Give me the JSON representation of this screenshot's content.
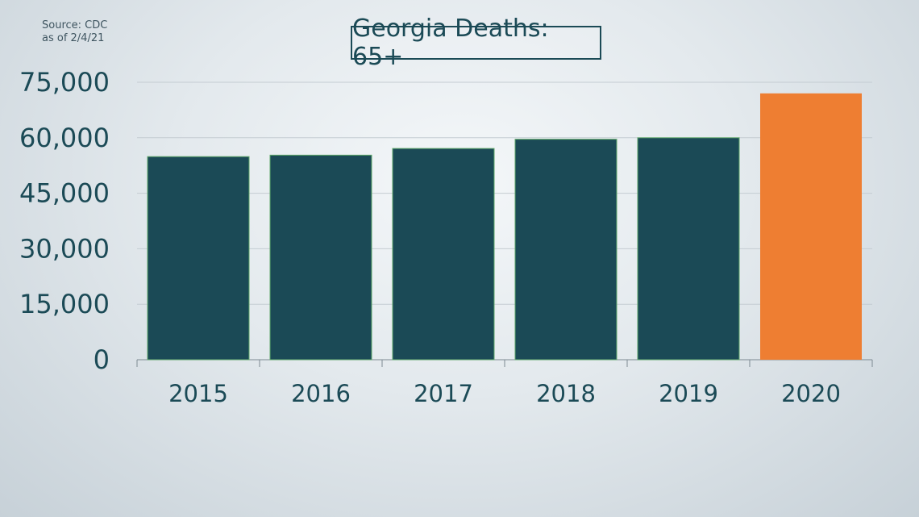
{
  "source": {
    "line1": "Source: CDC",
    "line2": "as of 2/4/21"
  },
  "chart_data": {
    "type": "bar",
    "title": "Georgia Deaths: 65+",
    "xlabel": "",
    "ylabel": "",
    "categories": [
      "2015",
      "2016",
      "2017",
      "2018",
      "2019",
      "2020"
    ],
    "values": [
      54900,
      55300,
      57100,
      59600,
      60000,
      72000
    ],
    "ylim": [
      0,
      75000
    ],
    "yticks": [
      0,
      15000,
      30000,
      45000,
      60000,
      75000
    ],
    "ytick_labels": [
      "0",
      "15,000",
      "30,000",
      "45,000",
      "60,000",
      "75,000"
    ],
    "grid": true,
    "legend": "none",
    "colors": {
      "bar": "#1b4a56",
      "bar_outline": "#5fa86a",
      "highlight": "#ee7e32",
      "highlight_index": 5,
      "text": "#1b4a56",
      "grid": "#c4ccd2"
    }
  }
}
